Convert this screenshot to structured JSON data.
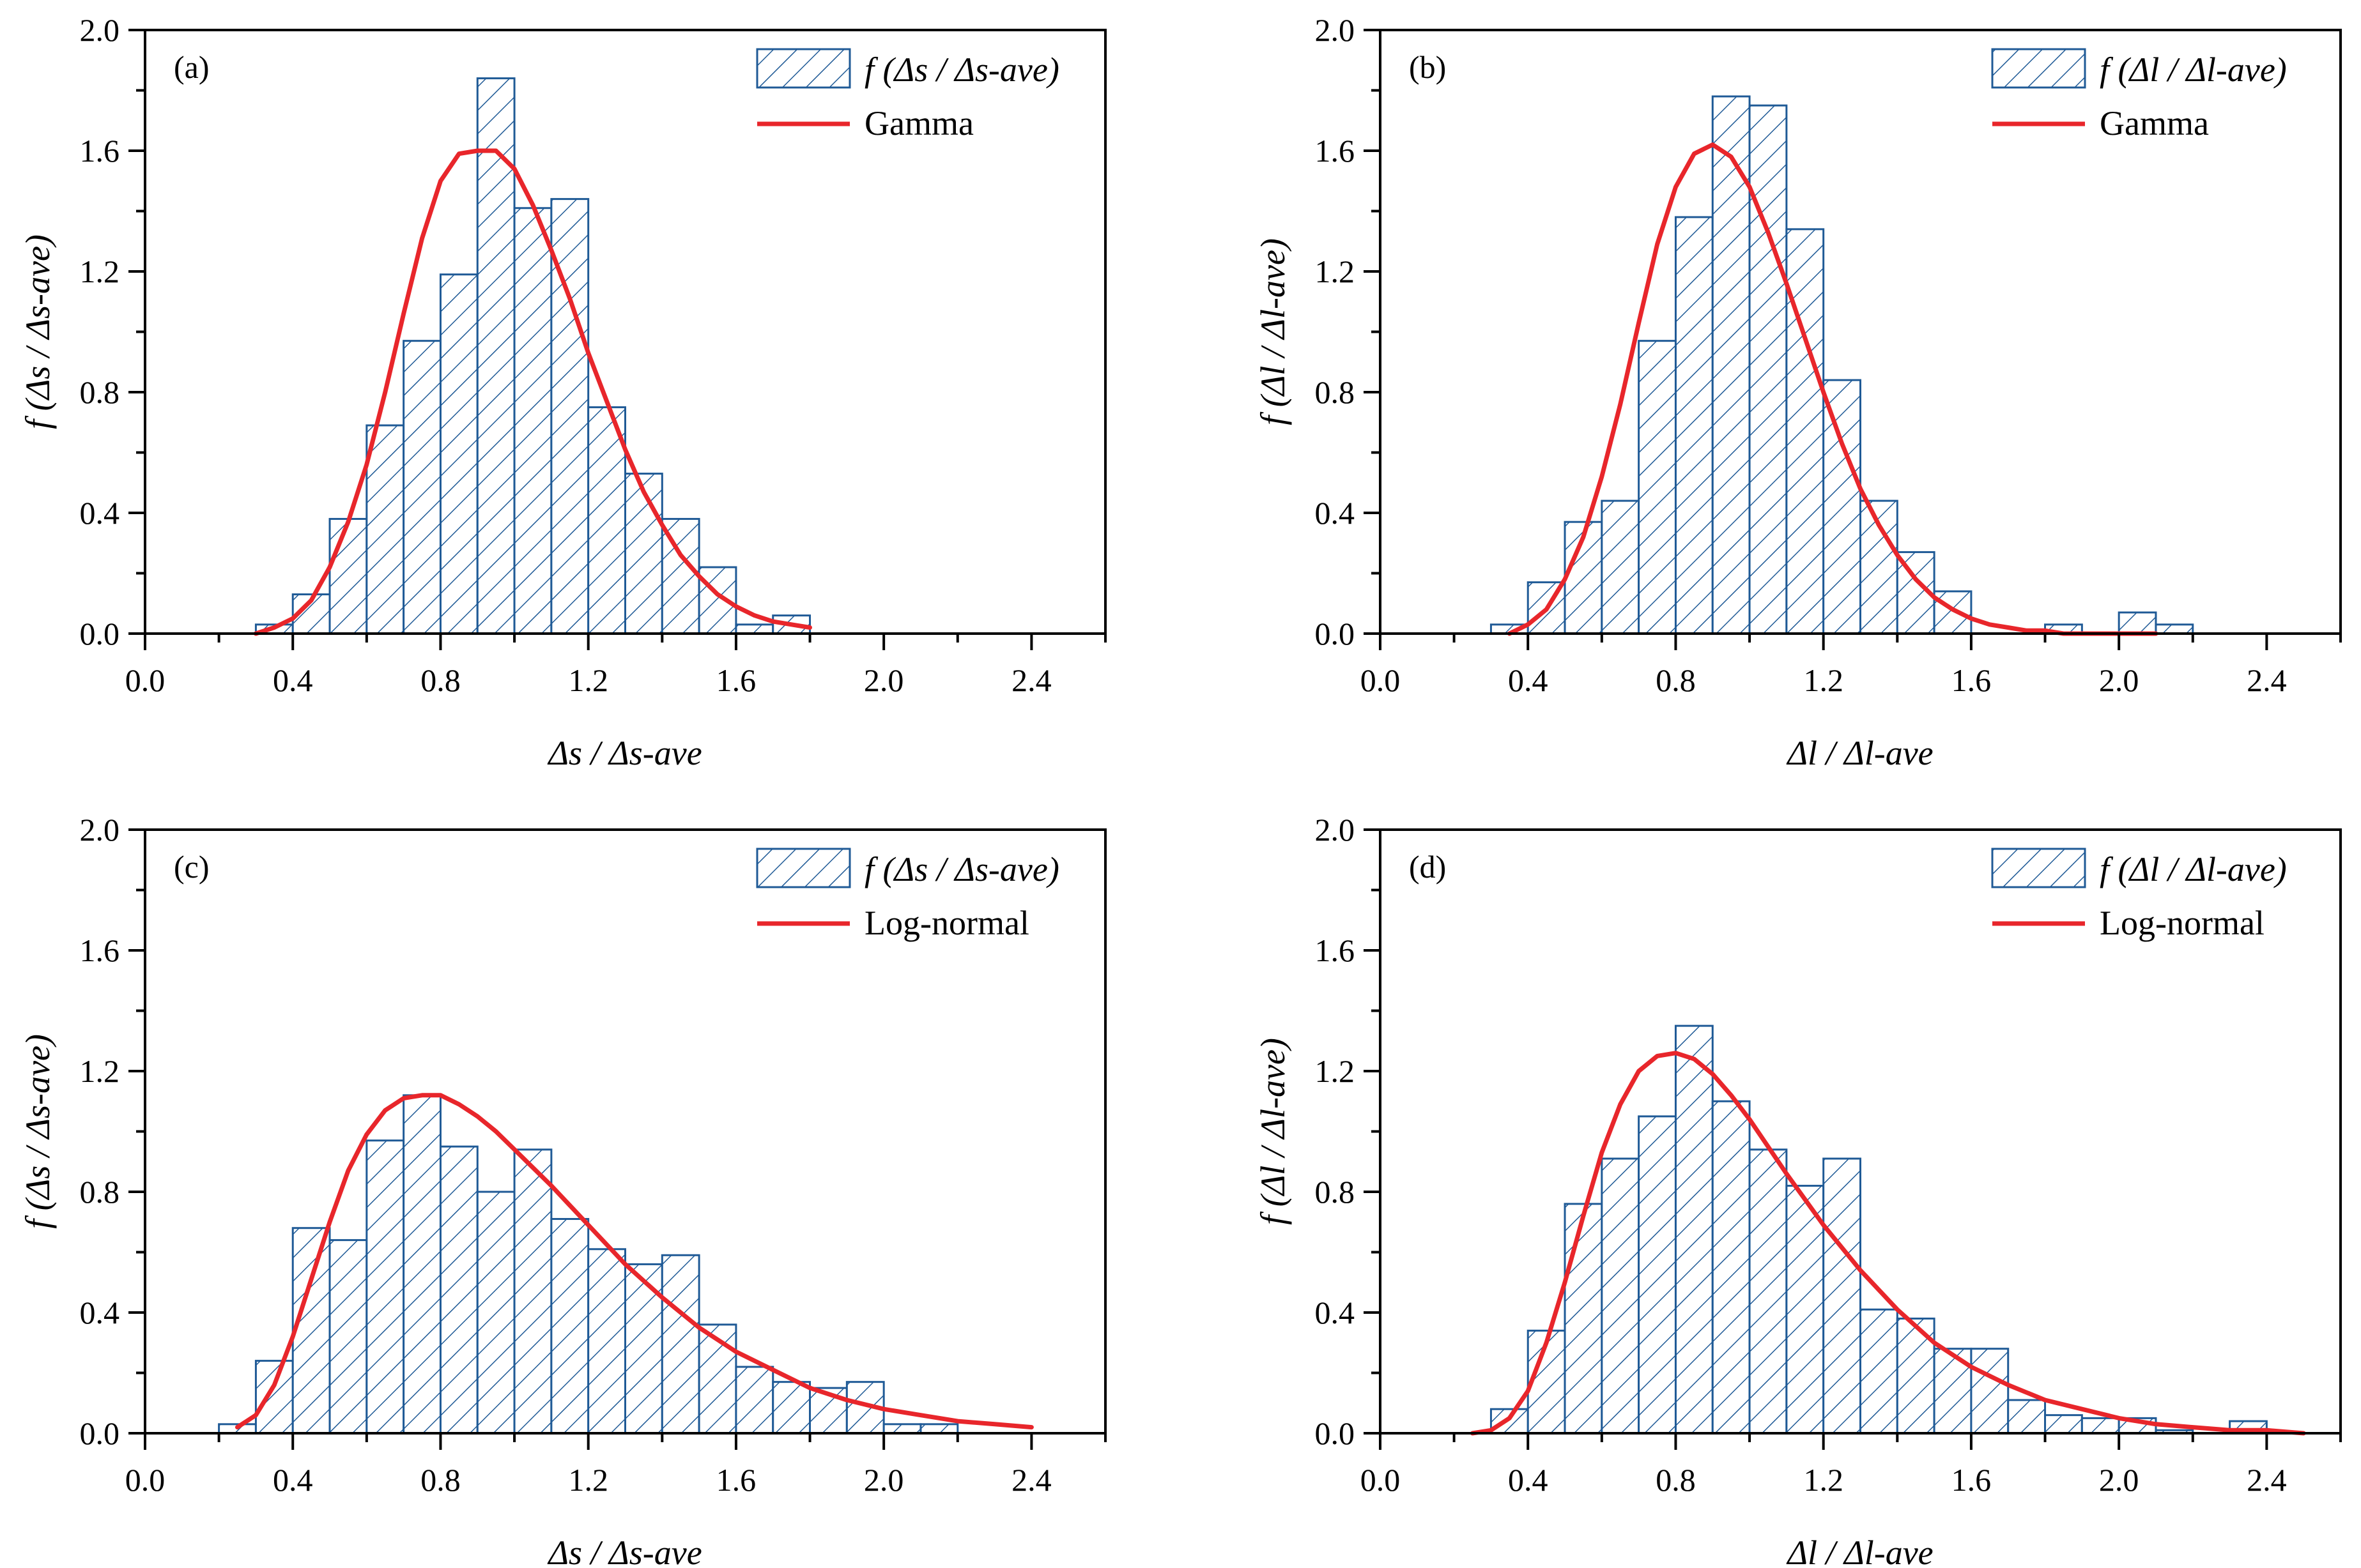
{
  "colors": {
    "bar_stroke": "#1f5a96",
    "curve": "#e8262b",
    "axis": "#000000",
    "background": "#ffffff"
  },
  "chart_data": [
    {
      "type": "bar",
      "panel_label": "(a)",
      "xlabel": "Δs / Δs-ave",
      "ylabel": "f (Δs / Δs-ave)",
      "xlim": [
        0.0,
        2.6
      ],
      "ylim": [
        0.0,
        2.0
      ],
      "xticks": [
        "0.0",
        "0.4",
        "0.8",
        "1.2",
        "1.6",
        "2.0",
        "2.4"
      ],
      "yticks": [
        "0.0",
        "0.4",
        "0.8",
        "1.2",
        "1.6",
        "2.0"
      ],
      "bin_width": 0.1,
      "bins_left": [
        0.3,
        0.4,
        0.5,
        0.6,
        0.7,
        0.8,
        0.9,
        1.0,
        1.1,
        1.2,
        1.3,
        1.4,
        1.5,
        1.6,
        1.7
      ],
      "values": [
        0.03,
        0.13,
        0.38,
        0.69,
        0.97,
        1.19,
        1.84,
        1.41,
        1.44,
        0.75,
        0.53,
        0.38,
        0.22,
        0.03,
        0.06
      ],
      "fit": {
        "name": "Gamma",
        "x": [
          0.3,
          0.35,
          0.4,
          0.45,
          0.5,
          0.55,
          0.6,
          0.65,
          0.7,
          0.75,
          0.8,
          0.85,
          0.9,
          0.95,
          1.0,
          1.05,
          1.1,
          1.15,
          1.2,
          1.25,
          1.3,
          1.35,
          1.4,
          1.45,
          1.5,
          1.55,
          1.6,
          1.65,
          1.7,
          1.75,
          1.8
        ],
        "y": [
          0.0,
          0.02,
          0.05,
          0.11,
          0.22,
          0.37,
          0.56,
          0.8,
          1.06,
          1.31,
          1.5,
          1.59,
          1.6,
          1.6,
          1.54,
          1.42,
          1.27,
          1.11,
          0.93,
          0.77,
          0.61,
          0.47,
          0.36,
          0.26,
          0.19,
          0.13,
          0.09,
          0.06,
          0.04,
          0.03,
          0.02
        ]
      },
      "legend": {
        "hist_prefix": "f",
        "hist_label": "(Δs / Δs-ave)",
        "fit_label": "Gamma"
      }
    },
    {
      "type": "bar",
      "panel_label": "(b)",
      "xlabel": "Δl / Δl-ave",
      "ylabel": "f (Δl / Δl-ave)",
      "xlim": [
        0.0,
        2.6
      ],
      "ylim": [
        0.0,
        2.0
      ],
      "xticks": [
        "0.0",
        "0.4",
        "0.8",
        "1.2",
        "1.6",
        "2.0",
        "2.4"
      ],
      "yticks": [
        "0.0",
        "0.4",
        "0.8",
        "1.2",
        "1.6",
        "2.0"
      ],
      "bin_width": 0.1,
      "bins_left": [
        0.3,
        0.4,
        0.5,
        0.6,
        0.7,
        0.8,
        0.9,
        1.0,
        1.1,
        1.2,
        1.3,
        1.4,
        1.5,
        1.6,
        1.7,
        1.8,
        1.9,
        2.0,
        2.1
      ],
      "values": [
        0.03,
        0.17,
        0.37,
        0.44,
        0.97,
        1.38,
        1.78,
        1.75,
        1.34,
        0.84,
        0.44,
        0.27,
        0.14,
        0.0,
        0.0,
        0.03,
        0.0,
        0.07,
        0.03
      ],
      "fit": {
        "name": "Gamma",
        "x": [
          0.35,
          0.4,
          0.45,
          0.5,
          0.55,
          0.6,
          0.65,
          0.7,
          0.75,
          0.8,
          0.85,
          0.9,
          0.95,
          1.0,
          1.05,
          1.1,
          1.15,
          1.2,
          1.25,
          1.3,
          1.35,
          1.4,
          1.45,
          1.5,
          1.55,
          1.6,
          1.65,
          1.7,
          1.75,
          1.8,
          1.85,
          1.9,
          1.95,
          2.0,
          2.05,
          2.1
        ],
        "y": [
          0.0,
          0.03,
          0.08,
          0.18,
          0.32,
          0.52,
          0.76,
          1.03,
          1.29,
          1.48,
          1.59,
          1.62,
          1.58,
          1.48,
          1.33,
          1.16,
          0.98,
          0.8,
          0.63,
          0.48,
          0.36,
          0.26,
          0.18,
          0.12,
          0.08,
          0.05,
          0.03,
          0.02,
          0.01,
          0.01,
          0.0,
          0.0,
          0.0,
          0.0,
          0.0,
          0.0
        ]
      },
      "legend": {
        "hist_prefix": "f",
        "hist_label": "(Δl / Δl-ave)",
        "fit_label": "Gamma"
      }
    },
    {
      "type": "bar",
      "panel_label": "(c)",
      "xlabel": "Δs / Δs-ave",
      "ylabel": "f (Δs / Δs-ave)",
      "xlim": [
        0.0,
        2.6
      ],
      "ylim": [
        0.0,
        2.0
      ],
      "xticks": [
        "0.0",
        "0.4",
        "0.8",
        "1.2",
        "1.6",
        "2.0",
        "2.4"
      ],
      "yticks": [
        "0.0",
        "0.4",
        "0.8",
        "1.2",
        "1.6",
        "2.0"
      ],
      "bin_width": 0.1,
      "bins_left": [
        0.2,
        0.3,
        0.4,
        0.5,
        0.6,
        0.7,
        0.8,
        0.9,
        1.0,
        1.1,
        1.2,
        1.3,
        1.4,
        1.5,
        1.6,
        1.7,
        1.8,
        1.9,
        2.0,
        2.1
      ],
      "values": [
        0.03,
        0.24,
        0.68,
        0.64,
        0.97,
        1.12,
        0.95,
        0.8,
        0.94,
        0.71,
        0.61,
        0.56,
        0.59,
        0.36,
        0.22,
        0.17,
        0.15,
        0.17,
        0.03,
        0.03
      ],
      "fit": {
        "name": "Log-normal",
        "x": [
          0.25,
          0.3,
          0.35,
          0.4,
          0.45,
          0.5,
          0.55,
          0.6,
          0.65,
          0.7,
          0.75,
          0.8,
          0.85,
          0.9,
          0.95,
          1.0,
          1.1,
          1.2,
          1.3,
          1.4,
          1.5,
          1.6,
          1.7,
          1.8,
          1.9,
          2.0,
          2.1,
          2.2,
          2.3,
          2.4
        ],
        "y": [
          0.02,
          0.06,
          0.16,
          0.32,
          0.51,
          0.7,
          0.87,
          0.99,
          1.07,
          1.11,
          1.12,
          1.12,
          1.09,
          1.05,
          1.0,
          0.94,
          0.82,
          0.69,
          0.56,
          0.45,
          0.35,
          0.27,
          0.21,
          0.15,
          0.11,
          0.08,
          0.06,
          0.04,
          0.03,
          0.02
        ]
      },
      "legend": {
        "hist_prefix": "f",
        "hist_label": "(Δs / Δs-ave)",
        "fit_label": "Log-normal"
      }
    },
    {
      "type": "bar",
      "panel_label": "(d)",
      "xlabel": "Δl / Δl-ave",
      "ylabel": "f (Δl / Δl-ave)",
      "xlim": [
        0.0,
        2.6
      ],
      "ylim": [
        0.0,
        2.0
      ],
      "xticks": [
        "0.0",
        "0.4",
        "0.8",
        "1.2",
        "1.6",
        "2.0",
        "2.4"
      ],
      "yticks": [
        "0.0",
        "0.4",
        "0.8",
        "1.2",
        "1.6",
        "2.0"
      ],
      "bin_width": 0.1,
      "bins_left": [
        0.3,
        0.4,
        0.5,
        0.6,
        0.7,
        0.8,
        0.9,
        1.0,
        1.1,
        1.2,
        1.3,
        1.4,
        1.5,
        1.6,
        1.7,
        1.8,
        1.9,
        2.0,
        2.1,
        2.2,
        2.3
      ],
      "values": [
        0.08,
        0.34,
        0.76,
        0.91,
        1.05,
        1.35,
        1.1,
        0.94,
        0.82,
        0.91,
        0.41,
        0.38,
        0.28,
        0.28,
        0.11,
        0.06,
        0.05,
        0.05,
        0.01,
        0.0,
        0.04
      ],
      "fit": {
        "name": "Log-normal",
        "x": [
          0.25,
          0.3,
          0.35,
          0.4,
          0.45,
          0.5,
          0.55,
          0.6,
          0.65,
          0.7,
          0.75,
          0.8,
          0.85,
          0.9,
          0.95,
          1.0,
          1.1,
          1.2,
          1.3,
          1.4,
          1.5,
          1.6,
          1.7,
          1.8,
          1.9,
          2.0,
          2.1,
          2.2,
          2.3,
          2.4,
          2.5
        ],
        "y": [
          0.0,
          0.01,
          0.05,
          0.14,
          0.3,
          0.5,
          0.72,
          0.93,
          1.09,
          1.2,
          1.25,
          1.26,
          1.24,
          1.19,
          1.12,
          1.04,
          0.86,
          0.69,
          0.54,
          0.41,
          0.3,
          0.22,
          0.16,
          0.11,
          0.08,
          0.05,
          0.03,
          0.02,
          0.01,
          0.01,
          0.0
        ]
      },
      "legend": {
        "hist_prefix": "f",
        "hist_label": "(Δl / Δl-ave)",
        "fit_label": "Log-normal"
      }
    }
  ]
}
